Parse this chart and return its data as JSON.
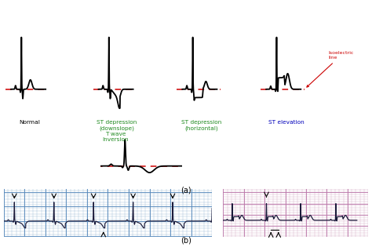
{
  "bg_color": "#ffffff",
  "title_a": "(a)",
  "title_b": "(b)",
  "label_normal": "Normal",
  "label_st_down": "ST depression\n(downslope)",
  "label_st_horiz": "ST depression\n(horizontal)",
  "label_st_elev": "ST elevation",
  "label_t_inv": "T wave\nInversion",
  "label_iso": "Isoelectric\nline",
  "label_color_normal": "#000000",
  "label_color_st": "#228B22",
  "label_color_elev": "#0000bb",
  "label_color_iso": "#cc0000",
  "iso_color": "#cc0000",
  "ecg_color": "#000000",
  "blue_bg": "#aacce0",
  "blue_grid_minor": "#88aacc",
  "blue_grid_major": "#5588bb",
  "pink_bg": "#e8bbd0",
  "pink_grid_minor": "#cc99bb",
  "pink_grid_major": "#bb77aa"
}
